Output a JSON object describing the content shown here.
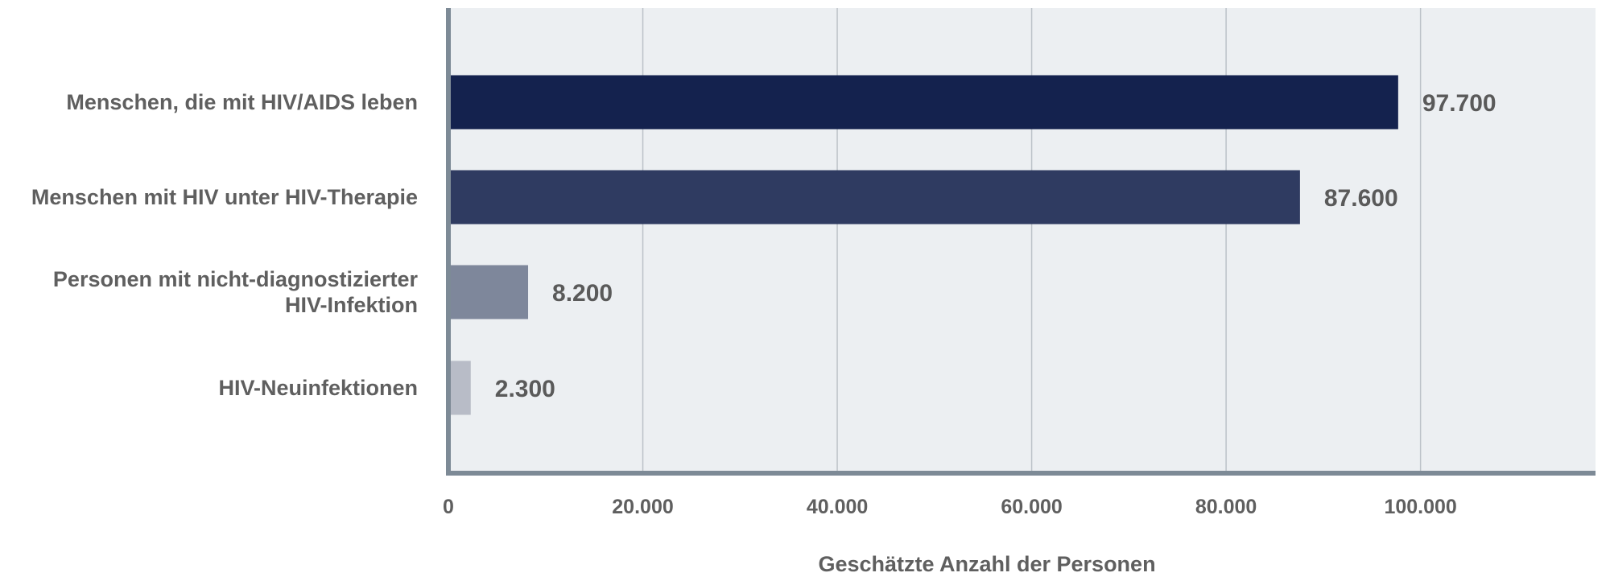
{
  "chart_data": {
    "type": "bar",
    "orientation": "horizontal",
    "categories": [
      [
        "Menschen, die mit HIV/AIDS leben"
      ],
      [
        "Menschen mit HIV unter HIV-Therapie"
      ],
      [
        "Personen mit nicht-diagnostizierter",
        "HIV-Infektion"
      ],
      [
        "HIV-Neuinfektionen"
      ]
    ],
    "values": [
      97700,
      87600,
      8200,
      2300
    ],
    "value_labels": [
      "97.700",
      "87.600",
      "8.200",
      "2.300"
    ],
    "bar_colors": [
      "#14224e",
      "#2f3b61",
      "#7e879b",
      "#b8bcc7"
    ],
    "xlabel": "Geschätzte Anzahl der Personen",
    "xlim": [
      0,
      118000
    ],
    "xticks": [
      0,
      20000,
      40000,
      60000,
      80000,
      100000
    ],
    "xtick_labels": [
      "0",
      "20.000",
      "40.000",
      "60.000",
      "80.000",
      "100.000"
    ],
    "grid": "vertical",
    "legend": "none",
    "colors": {
      "plot_background": "#eceff2",
      "gridline": "#bcc2c8",
      "axis_line": "#7d8a96"
    }
  }
}
